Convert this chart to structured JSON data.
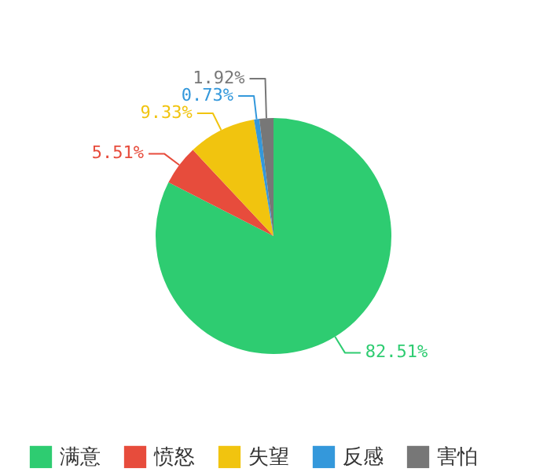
{
  "chart_data": {
    "type": "pie",
    "categories": [
      "满意",
      "愤怒",
      "失望",
      "反感",
      "害怕"
    ],
    "values": [
      82.51,
      5.51,
      9.33,
      0.73,
      1.92
    ],
    "colors": [
      "#2ecc71",
      "#e74c3c",
      "#f1c40f",
      "#3498db",
      "#777777"
    ],
    "value_labels": [
      "82.51%",
      "5.51%",
      "9.33%",
      "0.73%",
      "1.92%"
    ],
    "legend": "bottom"
  }
}
